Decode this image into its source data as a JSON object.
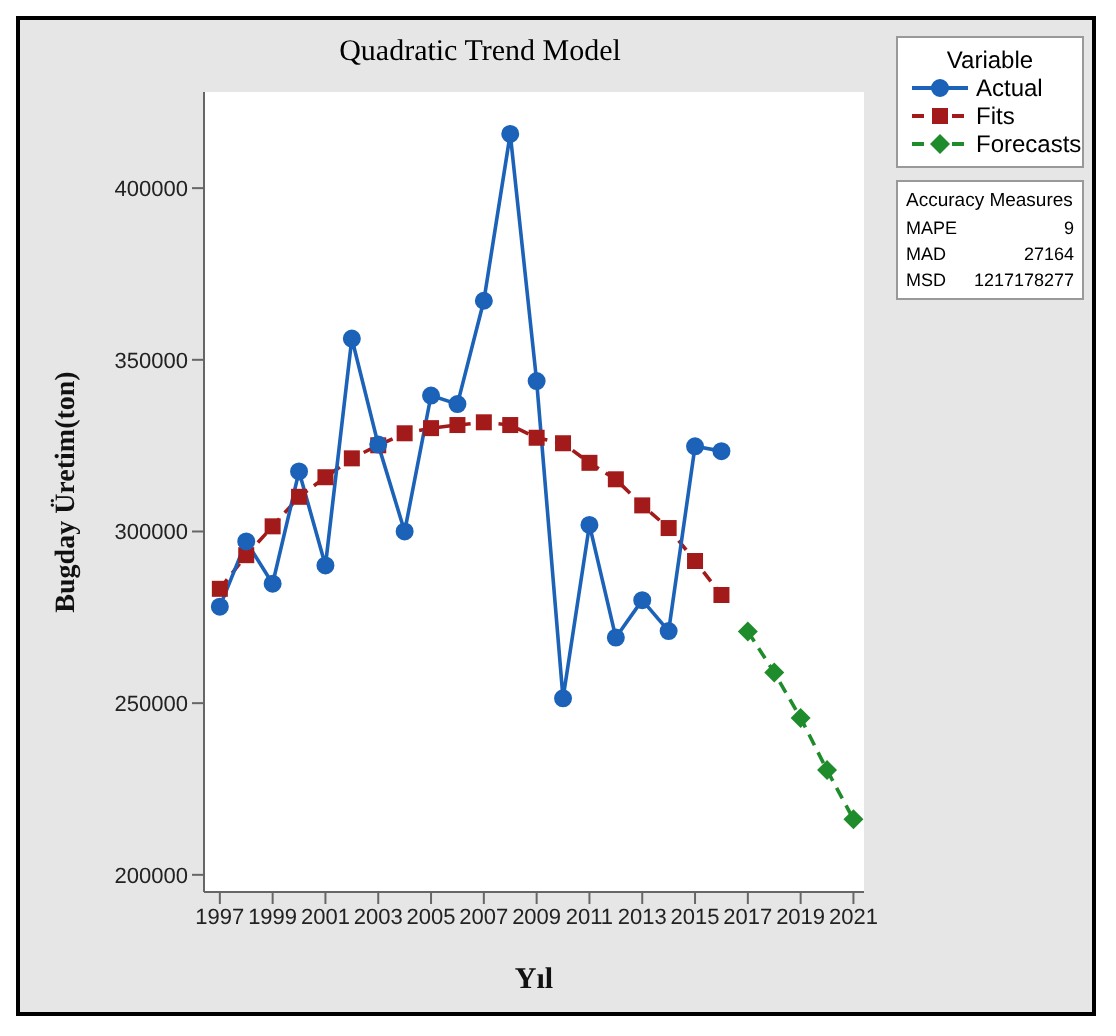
{
  "chart_data": {
    "type": "line",
    "title": "Quadratic Trend Model",
    "xlabel": "Yıl",
    "ylabel": "Bugday Üretim(ton)",
    "legend_title": "Variable",
    "legend": "top right",
    "grid": false,
    "xlim": [
      1996.4,
      2021.4
    ],
    "xticks": [
      1997,
      1999,
      2001,
      2003,
      2005,
      2007,
      2009,
      2011,
      2013,
      2015,
      2017,
      2019,
      2021
    ],
    "ylim": [
      195000,
      428000
    ],
    "yticks": [
      200000,
      250000,
      300000,
      350000,
      400000
    ],
    "annotations": [
      "Accuracy Measures",
      "MAPE",
      "9",
      "MAD",
      "27164",
      "MSD",
      "1217178277"
    ],
    "series": [
      {
        "name": "Actual",
        "color": "#1b62b8",
        "marker": "circle",
        "line_style": "solid",
        "x": [
          1997,
          1998,
          1999,
          2000,
          2001,
          2002,
          2003,
          2004,
          2005,
          2006,
          2007,
          2008,
          2009,
          2010,
          2011,
          2012,
          2013,
          2014,
          2015,
          2016
        ],
        "values": [
          278100,
          297100,
          284800,
          317500,
          290100,
          356200,
          325300,
          300000,
          339600,
          337100,
          367200,
          415800,
          343800,
          251400,
          301900,
          269100,
          280000,
          271000,
          324800,
          323400
        ]
      },
      {
        "name": "Fits",
        "color": "#a31a1a",
        "marker": "square",
        "line_style": "dashed",
        "x": [
          1997,
          1998,
          1999,
          2000,
          2001,
          2002,
          2003,
          2004,
          2005,
          2006,
          2007,
          2008,
          2009,
          2010,
          2011,
          2012,
          2013,
          2014,
          2015,
          2016
        ],
        "values": [
          283300,
          293100,
          301500,
          310100,
          315800,
          321300,
          325100,
          328600,
          330100,
          331000,
          331800,
          331000,
          327300,
          325700,
          320000,
          315200,
          307600,
          301000,
          291400,
          281500
        ]
      },
      {
        "name": "Forecasts",
        "color": "#1e8c2a",
        "marker": "diamond",
        "line_style": "dashed",
        "x": [
          2017,
          2018,
          2019,
          2020,
          2021
        ],
        "values": [
          270900,
          258900,
          245700,
          230500,
          216200
        ]
      }
    ]
  }
}
